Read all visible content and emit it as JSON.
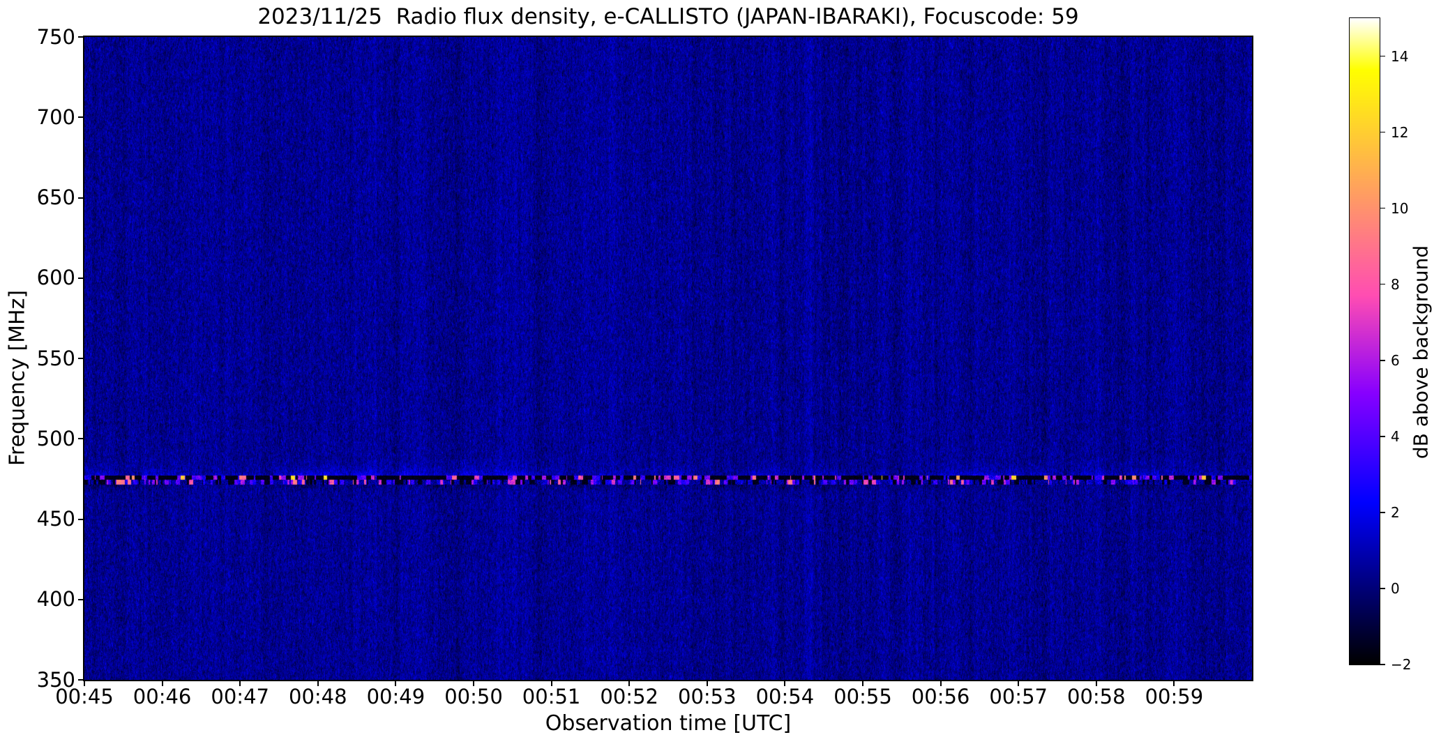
{
  "figure": {
    "title": "2023/11/25  Radio flux density, e-CALLISTO (JAPAN-IBARAKI), Focuscode: 59",
    "date": "2023/11/25",
    "instrument": "e-CALLISTO (JAPAN-IBARAKI)",
    "focuscode": "59"
  },
  "chart_data": {
    "type": "heatmap",
    "subtype": "radio-spectrogram",
    "title": "2023/11/25  Radio flux density, e-CALLISTO (JAPAN-IBARAKI), Focuscode: 59",
    "xlabel": "Observation time [UTC]",
    "ylabel": "Frequency [MHz]",
    "x_tick_labels": [
      "00:45",
      "00:46",
      "00:47",
      "00:48",
      "00:49",
      "00:50",
      "00:51",
      "00:52",
      "00:53",
      "00:54",
      "00:55",
      "00:56",
      "00:57",
      "00:58",
      "00:59"
    ],
    "x_range_minutes": [
      45,
      60
    ],
    "y_ticks": [
      750,
      700,
      650,
      600,
      550,
      500,
      450,
      400,
      350
    ],
    "ylim": [
      350,
      750
    ],
    "grid": false,
    "legend": "none",
    "colorbar": {
      "label": "dB above background",
      "ticks": [
        14,
        12,
        10,
        8,
        6,
        4,
        2,
        0,
        -2
      ],
      "vmin": -2,
      "vmax": 15,
      "colormap": "gnuplot2",
      "position": "right"
    },
    "background_noise_db": {
      "mean": 0.38,
      "sigma": 0.48
    },
    "rfi_band": {
      "center_mhz": 475,
      "black_row_mhz": [
        474.4,
        477.1
      ],
      "mixed_row_mhz": [
        471.6,
        474.4
      ],
      "haze_top_mhz": 487,
      "shadow_bottom_mhz": 467,
      "burst_db_range": [
        -2,
        13
      ],
      "description": "persistent horizontal interference band at ~475 MHz with intermittent bright bursts and blue haze above"
    }
  }
}
